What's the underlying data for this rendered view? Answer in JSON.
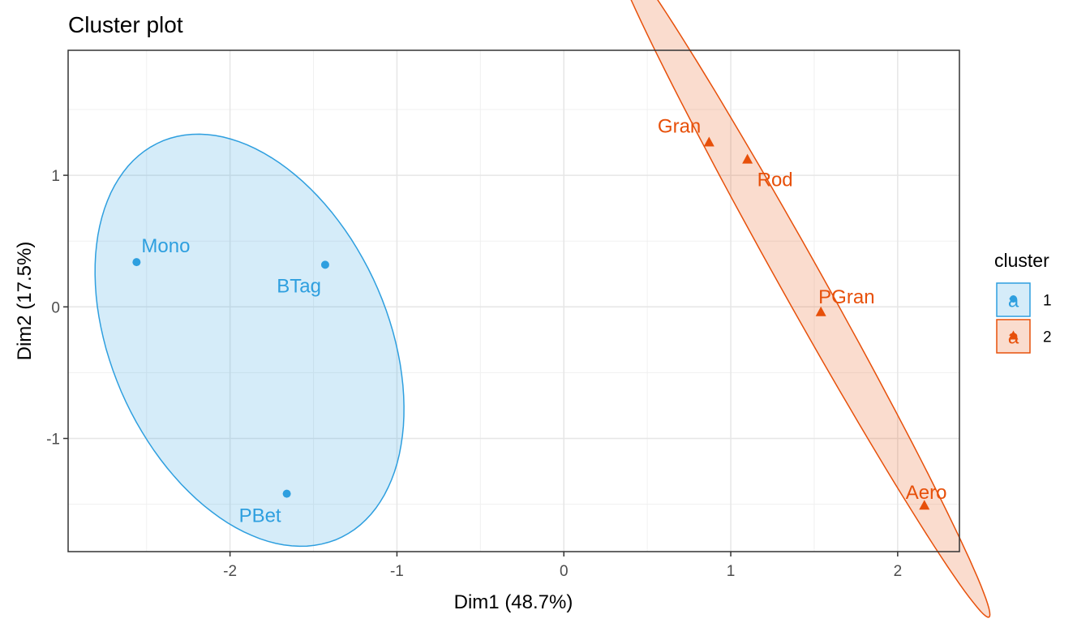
{
  "chart_data": {
    "type": "scatter",
    "title": "Cluster plot",
    "xlabel": "Dim1 (48.7%)",
    "ylabel": "Dim2 (17.5%)",
    "xlim": [
      -2.97,
      2.37
    ],
    "ylim": [
      -1.86,
      1.95
    ],
    "x_ticks": [
      -2,
      -1,
      0,
      1,
      2
    ],
    "y_ticks": [
      -1,
      0,
      1
    ],
    "x_tick_labels": [
      "-2",
      "-1",
      "0",
      "1",
      "2"
    ],
    "y_tick_labels": [
      "-1",
      "0",
      "1"
    ],
    "grid": true,
    "legend_position": "right",
    "legend": {
      "title": "cluster",
      "key_glyph_text": "a",
      "entries": [
        {
          "label": "1",
          "color": "#2E9FDF",
          "shape": "circle"
        },
        {
          "label": "2",
          "color": "#E7500A",
          "shape": "triangle"
        }
      ]
    },
    "colors": {
      "cluster_1": "#2E9FDF",
      "cluster_2": "#E7500A"
    },
    "points": [
      {
        "label": "Mono",
        "x": -2.56,
        "y": 0.34,
        "cluster": "1"
      },
      {
        "label": "BTag",
        "x": -1.43,
        "y": 0.32,
        "cluster": "1"
      },
      {
        "label": "PBet",
        "x": -1.66,
        "y": -1.42,
        "cluster": "1"
      },
      {
        "label": "Gran",
        "x": 0.87,
        "y": 1.25,
        "cluster": "2"
      },
      {
        "label": "Rod",
        "x": 1.1,
        "y": 1.12,
        "cluster": "2"
      },
      {
        "label": "PGran",
        "x": 1.54,
        "y": -0.04,
        "cluster": "2"
      },
      {
        "label": "Aero",
        "x": 2.16,
        "y": -1.51,
        "cluster": "2"
      }
    ]
  }
}
